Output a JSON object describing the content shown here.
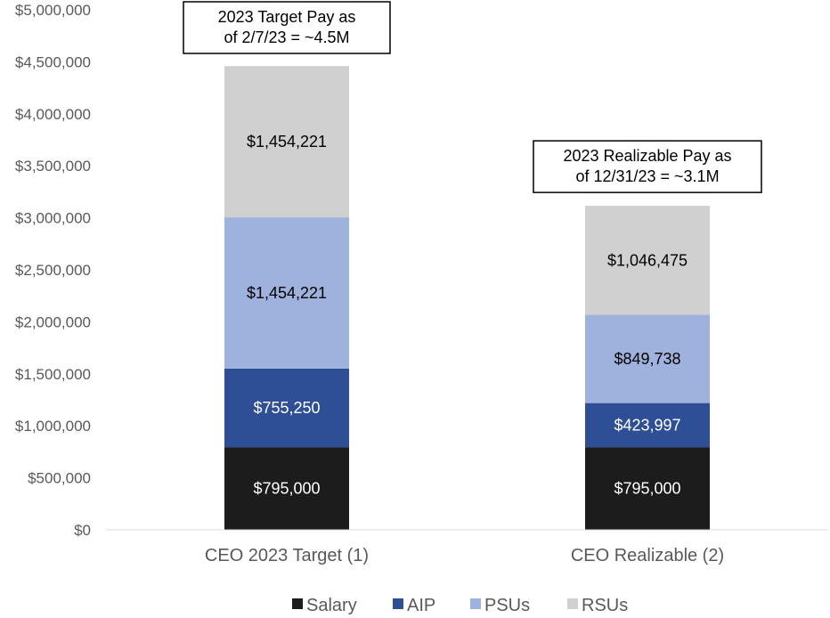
{
  "chart_data": {
    "type": "bar",
    "stacked": true,
    "categories": [
      "CEO 2023 Target (1)",
      "CEO Realizable (2)"
    ],
    "series": [
      {
        "name": "Salary",
        "color": "#1c1c1c",
        "label_color": "#ffffff",
        "values": [
          795000,
          795000
        ],
        "labels": [
          "$795,000",
          "$795,000"
        ]
      },
      {
        "name": "AIP",
        "color": "#2e4f96",
        "label_color": "#ffffff",
        "values": [
          755250,
          423997
        ],
        "labels": [
          "$755,250",
          "$423,997"
        ]
      },
      {
        "name": "PSUs",
        "color": "#9fb2de",
        "label_color": "#000000",
        "values": [
          1454221,
          849738
        ],
        "labels": [
          "$1,454,221",
          "$849,738"
        ]
      },
      {
        "name": "RSUs",
        "color": "#d0d0d0",
        "label_color": "#000000",
        "values": [
          1454221,
          1046475
        ],
        "labels": [
          "$1,454,221",
          "$1,046,475"
        ]
      }
    ],
    "ylim": [
      0,
      5000000
    ],
    "yticks": [
      0,
      500000,
      1000000,
      1500000,
      2000000,
      2500000,
      3000000,
      3500000,
      4000000,
      4500000,
      5000000
    ],
    "ytick_labels": [
      "$0",
      "$500,000",
      "$1,000,000",
      "$1,500,000",
      "$2,000,000",
      "$2,500,000",
      "$3,000,000",
      "$3,500,000",
      "$4,000,000",
      "$4,500,000",
      "$5,000,000"
    ],
    "grid": false,
    "legend_position": "bottom",
    "annotations": [
      {
        "category_index": 0,
        "lines": [
          "2023 Target Pay as",
          "of 2/7/23 = ~4.5M"
        ]
      },
      {
        "category_index": 1,
        "lines": [
          "2023 Realizable Pay as",
          "of 12/31/23 = ~3.1M"
        ]
      }
    ],
    "title": "",
    "xlabel": "",
    "ylabel": ""
  }
}
